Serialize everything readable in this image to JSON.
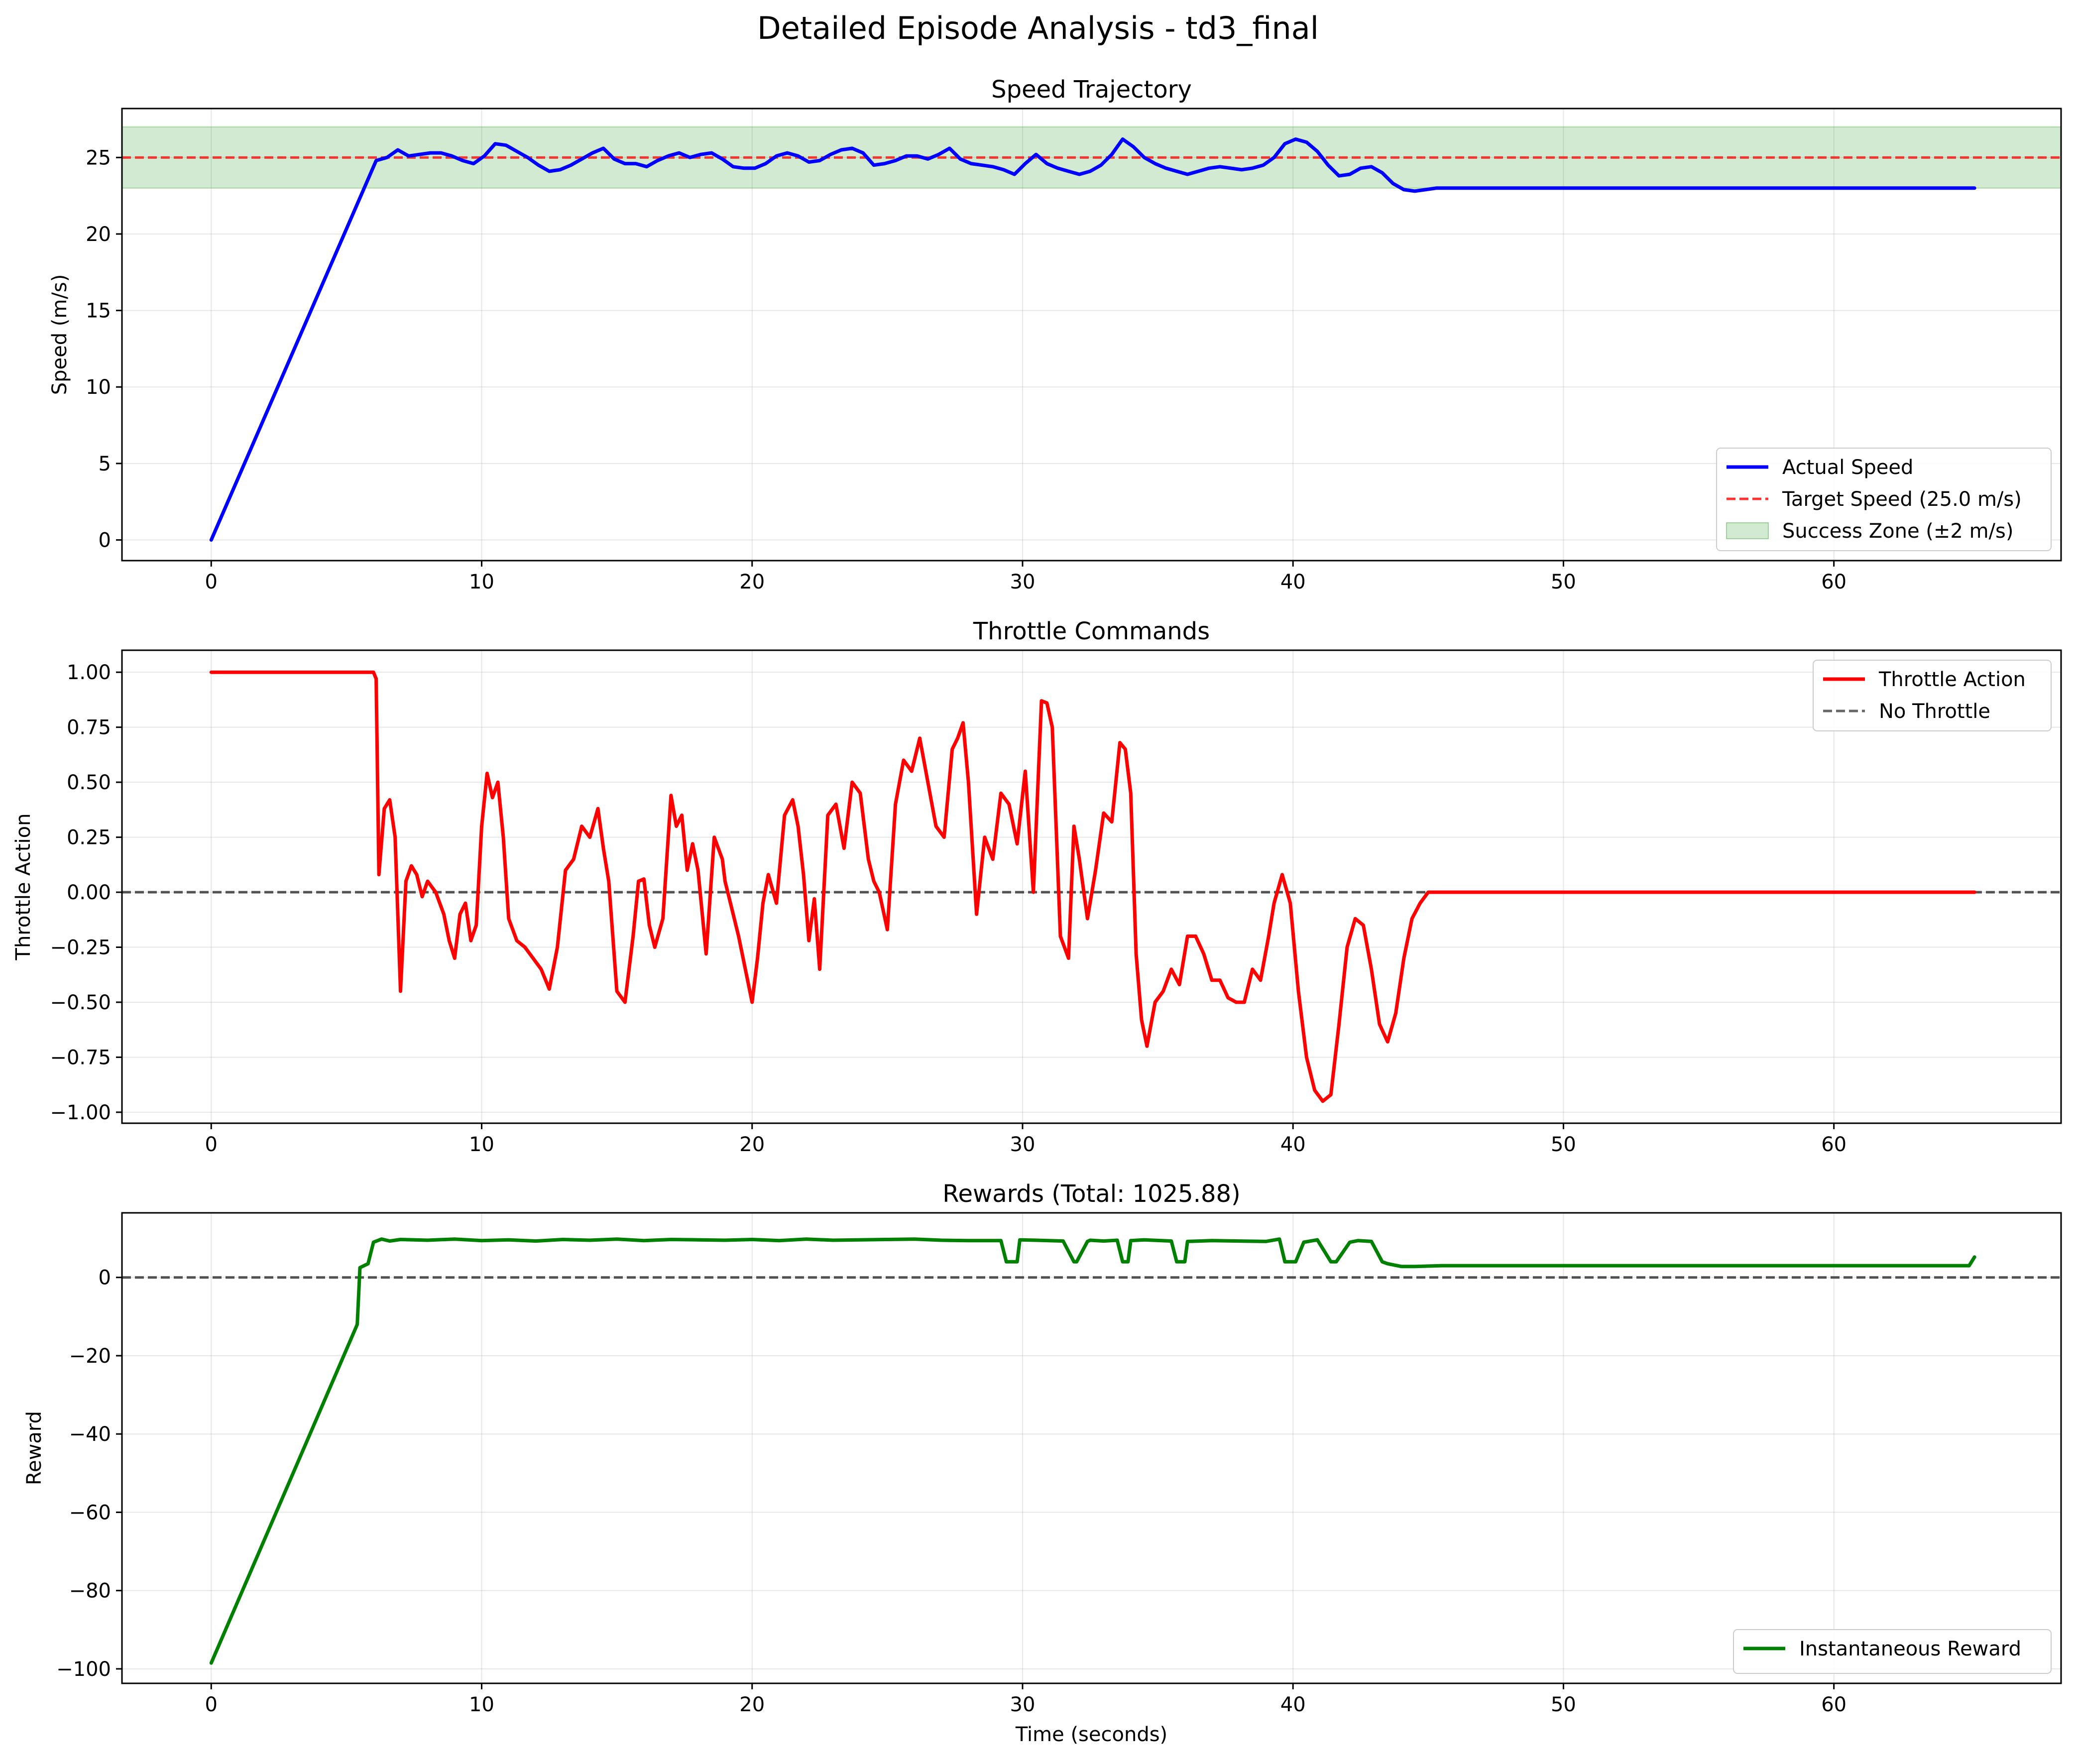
{
  "figure": {
    "title": "Detailed Episode Analysis - td3_final"
  },
  "chart_data": [
    {
      "type": "line",
      "title": "Speed Trajectory",
      "xlabel": "",
      "ylabel": "Speed (m/s)",
      "xlim": [
        -3.3,
        68.4
      ],
      "ylim": [
        -1.35,
        28.2
      ],
      "xticks": [
        0,
        10,
        20,
        30,
        40,
        50,
        60
      ],
      "yticks": [
        0,
        5,
        10,
        15,
        20,
        25
      ],
      "grid": true,
      "legend": "lower-right",
      "band": {
        "name": "Success Zone (±2 m/s)",
        "y0": 23,
        "y1": 27,
        "color": "#2ca02c"
      },
      "hlines": [
        {
          "name": "Target Speed (25.0 m/s)",
          "y": 25,
          "color": "#ff0000",
          "dash": "dashed"
        }
      ],
      "series": [
        {
          "name": "Actual Speed",
          "color": "#0000ff",
          "x": [
            0,
            6.1,
            6.5,
            6.9,
            7.3,
            7.7,
            8.1,
            8.5,
            8.9,
            9.3,
            9.7,
            10.1,
            10.5,
            10.9,
            11.3,
            11.7,
            12.1,
            12.5,
            12.9,
            13.3,
            13.7,
            14.1,
            14.5,
            14.9,
            15.3,
            15.7,
            16.1,
            16.5,
            16.9,
            17.3,
            17.7,
            18.1,
            18.5,
            18.9,
            19.3,
            19.7,
            20.1,
            20.5,
            20.9,
            21.3,
            21.7,
            22.1,
            22.5,
            22.9,
            23.3,
            23.7,
            24.1,
            24.5,
            24.9,
            25.3,
            25.7,
            26.1,
            26.5,
            26.9,
            27.3,
            27.7,
            28.1,
            28.5,
            28.9,
            29.3,
            29.7,
            30.1,
            30.5,
            30.9,
            31.3,
            31.7,
            32.1,
            32.5,
            32.9,
            33.3,
            33.7,
            34.1,
            34.5,
            34.9,
            35.3,
            35.7,
            36.1,
            36.5,
            36.9,
            37.3,
            37.7,
            38.1,
            38.5,
            38.9,
            39.3,
            39.7,
            40.1,
            40.5,
            40.9,
            41.3,
            41.7,
            42.1,
            42.5,
            42.9,
            43.3,
            43.7,
            44.1,
            44.5,
            44.9,
            45.3,
            45.7,
            46.5,
            48,
            55,
            60,
            65.2
          ],
          "y": [
            0,
            24.8,
            25.0,
            25.5,
            25.1,
            25.2,
            25.3,
            25.3,
            25.1,
            24.8,
            24.6,
            25.1,
            25.9,
            25.8,
            25.4,
            25.0,
            24.5,
            24.1,
            24.2,
            24.5,
            24.9,
            25.3,
            25.6,
            24.9,
            24.6,
            24.6,
            24.4,
            24.8,
            25.1,
            25.3,
            25.0,
            25.2,
            25.3,
            24.9,
            24.4,
            24.3,
            24.3,
            24.6,
            25.1,
            25.3,
            25.1,
            24.7,
            24.8,
            25.2,
            25.5,
            25.6,
            25.3,
            24.5,
            24.6,
            24.8,
            25.1,
            25.1,
            24.9,
            25.2,
            25.6,
            24.9,
            24.6,
            24.5,
            24.4,
            24.2,
            23.9,
            24.6,
            25.2,
            24.6,
            24.3,
            24.1,
            23.9,
            24.1,
            24.5,
            25.2,
            26.2,
            25.7,
            25.0,
            24.6,
            24.3,
            24.1,
            23.9,
            24.1,
            24.3,
            24.4,
            24.3,
            24.2,
            24.3,
            24.5,
            25.0,
            25.9,
            26.2,
            26.0,
            25.4,
            24.5,
            23.8,
            23.9,
            24.3,
            24.4,
            24.0,
            23.3,
            22.9,
            22.8,
            22.9,
            23.0,
            23.0,
            23.0,
            23.0,
            23.0,
            23.0,
            23.0
          ]
        }
      ]
    },
    {
      "type": "line",
      "title": "Throttle Commands",
      "xlabel": "",
      "ylabel": "Throttle Action",
      "xlim": [
        -3.3,
        68.4
      ],
      "ylim": [
        -1.05,
        1.1
      ],
      "xticks": [
        0,
        10,
        20,
        30,
        40,
        50,
        60
      ],
      "yticks": [
        -1.0,
        -0.75,
        -0.5,
        -0.25,
        0.0,
        0.25,
        0.5,
        0.75,
        1.0
      ],
      "yticklabels": [
        "−1.00",
        "−0.75",
        "−0.50",
        "−0.25",
        "0.00",
        "0.25",
        "0.50",
        "0.75",
        "1.00"
      ],
      "grid": true,
      "legend": "upper-right",
      "hlines": [
        {
          "name": "No Throttle",
          "y": 0,
          "color": "#404040",
          "dash": "dashed"
        }
      ],
      "series": [
        {
          "name": "Throttle Action",
          "color": "#ff0000",
          "x": [
            0,
            6.0,
            6.1,
            6.2,
            6.4,
            6.6,
            6.8,
            7.0,
            7.2,
            7.4,
            7.6,
            7.8,
            8.0,
            8.3,
            8.6,
            8.8,
            9.0,
            9.2,
            9.4,
            9.6,
            9.8,
            10.0,
            10.2,
            10.4,
            10.6,
            10.8,
            11.0,
            11.3,
            11.6,
            11.9,
            12.2,
            12.5,
            12.8,
            13.1,
            13.4,
            13.7,
            14.0,
            14.3,
            14.5,
            14.7,
            15.0,
            15.3,
            15.6,
            15.8,
            16.0,
            16.2,
            16.4,
            16.7,
            17.0,
            17.2,
            17.4,
            17.6,
            17.8,
            18.0,
            18.3,
            18.6,
            18.9,
            19.0,
            19.2,
            19.5,
            19.8,
            20.0,
            20.2,
            20.4,
            20.6,
            20.9,
            21.2,
            21.5,
            21.7,
            21.9,
            22.1,
            22.3,
            22.5,
            22.8,
            23.1,
            23.4,
            23.7,
            24.0,
            24.3,
            24.5,
            24.7,
            25.0,
            25.3,
            25.6,
            25.9,
            26.2,
            26.5,
            26.8,
            27.1,
            27.4,
            27.6,
            27.8,
            28.0,
            28.3,
            28.6,
            28.9,
            29.2,
            29.5,
            29.8,
            30.1,
            30.4,
            30.7,
            30.9,
            31.1,
            31.4,
            31.7,
            31.9,
            32.1,
            32.4,
            32.7,
            33.0,
            33.3,
            33.6,
            33.8,
            34.0,
            34.2,
            34.4,
            34.6,
            34.9,
            35.2,
            35.5,
            35.8,
            36.1,
            36.4,
            36.7,
            37.0,
            37.3,
            37.6,
            37.9,
            38.2,
            38.5,
            38.8,
            39.1,
            39.3,
            39.6,
            39.9,
            40.2,
            40.5,
            40.8,
            41.1,
            41.4,
            41.7,
            42.0,
            42.3,
            42.6,
            42.9,
            43.2,
            43.5,
            43.8,
            44.1,
            44.4,
            44.7,
            45.0,
            45.3,
            46.0,
            48,
            55,
            60,
            65.2
          ],
          "y": [
            1.0,
            1.0,
            0.97,
            0.08,
            0.38,
            0.42,
            0.25,
            -0.45,
            0.05,
            0.12,
            0.08,
            -0.02,
            0.05,
            0.0,
            -0.1,
            -0.22,
            -0.3,
            -0.1,
            -0.05,
            -0.22,
            -0.15,
            0.3,
            0.54,
            0.43,
            0.5,
            0.25,
            -0.12,
            -0.22,
            -0.25,
            -0.3,
            -0.35,
            -0.44,
            -0.25,
            0.1,
            0.15,
            0.3,
            0.25,
            0.38,
            0.2,
            0.05,
            -0.45,
            -0.5,
            -0.2,
            0.05,
            0.06,
            -0.15,
            -0.25,
            -0.12,
            0.44,
            0.3,
            0.35,
            0.1,
            0.22,
            0.1,
            -0.28,
            0.25,
            0.15,
            0.05,
            -0.05,
            -0.2,
            -0.38,
            -0.5,
            -0.3,
            -0.05,
            0.08,
            -0.05,
            0.35,
            0.42,
            0.3,
            0.08,
            -0.22,
            -0.03,
            -0.35,
            0.35,
            0.4,
            0.2,
            0.5,
            0.45,
            0.15,
            0.05,
            0.0,
            -0.17,
            0.4,
            0.6,
            0.55,
            0.7,
            0.5,
            0.3,
            0.25,
            0.65,
            0.7,
            0.77,
            0.5,
            -0.1,
            0.25,
            0.15,
            0.45,
            0.4,
            0.22,
            0.55,
            0.0,
            0.87,
            0.86,
            0.75,
            -0.2,
            -0.3,
            0.3,
            0.15,
            -0.12,
            0.1,
            0.36,
            0.32,
            0.68,
            0.65,
            0.45,
            -0.28,
            -0.58,
            -0.7,
            -0.5,
            -0.45,
            -0.35,
            -0.42,
            -0.2,
            -0.2,
            -0.28,
            -0.4,
            -0.4,
            -0.48,
            -0.5,
            -0.5,
            -0.35,
            -0.4,
            -0.2,
            -0.05,
            0.08,
            -0.05,
            -0.45,
            -0.75,
            -0.9,
            -0.95,
            -0.92,
            -0.6,
            -0.25,
            -0.12,
            -0.15,
            -0.35,
            -0.6,
            -0.68,
            -0.55,
            -0.3,
            -0.12,
            -0.05,
            0.0,
            0.0,
            0.0,
            0.0,
            0.0,
            0.0,
            0.0
          ]
        }
      ]
    },
    {
      "type": "line",
      "title": "Rewards (Total: 1025.88)",
      "xlabel": "Time (seconds)",
      "ylabel": "Reward",
      "xlim": [
        -3.3,
        68.4
      ],
      "ylim": [
        -103.7,
        16.5
      ],
      "xticks": [
        0,
        10,
        20,
        30,
        40,
        50,
        60
      ],
      "yticks": [
        -100,
        -80,
        -60,
        -40,
        -20,
        0
      ],
      "yticklabels": [
        "−100",
        "−80",
        "−60",
        "−40",
        "−20",
        "0"
      ],
      "grid": true,
      "legend": "lower-right",
      "hlines": [
        {
          "name": "",
          "y": 0,
          "color": "#404040",
          "dash": "dashed"
        }
      ],
      "series": [
        {
          "name": "Instantaneous Reward",
          "color": "#008000",
          "x": [
            0,
            5.4,
            5.5,
            5.8,
            6.0,
            6.3,
            6.6,
            7.0,
            8.0,
            9.0,
            10.0,
            11.0,
            12.0,
            13.0,
            14.0,
            15.0,
            16.0,
            17.0,
            18.0,
            19.0,
            20.0,
            21.0,
            22.0,
            23.0,
            24.0,
            25.0,
            26.0,
            27.0,
            28.0,
            29.2,
            29.4,
            29.8,
            29.9,
            30.5,
            31.5,
            31.9,
            32.0,
            32.4,
            32.5,
            33.0,
            33.5,
            33.7,
            33.9,
            34.0,
            34.5,
            35.5,
            35.7,
            36.0,
            36.1,
            37.0,
            38.0,
            39.0,
            39.5,
            39.7,
            40.1,
            40.4,
            40.9,
            41.4,
            41.6,
            42.1,
            42.4,
            42.9,
            43.3,
            43.5,
            44.0,
            44.5,
            45.5,
            50,
            55,
            60,
            65.0,
            65.2
          ],
          "y": [
            -98.5,
            -12,
            2.5,
            3.5,
            9,
            9.8,
            9.3,
            9.7,
            9.5,
            9.8,
            9.4,
            9.6,
            9.3,
            9.7,
            9.5,
            9.8,
            9.4,
            9.7,
            9.6,
            9.5,
            9.7,
            9.4,
            9.8,
            9.5,
            9.6,
            9.7,
            9.8,
            9.5,
            9.4,
            9.4,
            4,
            4,
            9.6,
            9.5,
            9.3,
            4,
            4,
            9.2,
            9.5,
            9.3,
            9.5,
            4,
            4,
            9.4,
            9.6,
            9.3,
            4,
            4,
            9.2,
            9.4,
            9.3,
            9.2,
            9.8,
            4,
            4,
            9,
            9.6,
            4,
            4,
            9,
            9.4,
            9.2,
            4,
            3.5,
            2.8,
            2.8,
            3,
            3,
            3,
            3,
            3,
            5.2
          ]
        }
      ]
    }
  ]
}
